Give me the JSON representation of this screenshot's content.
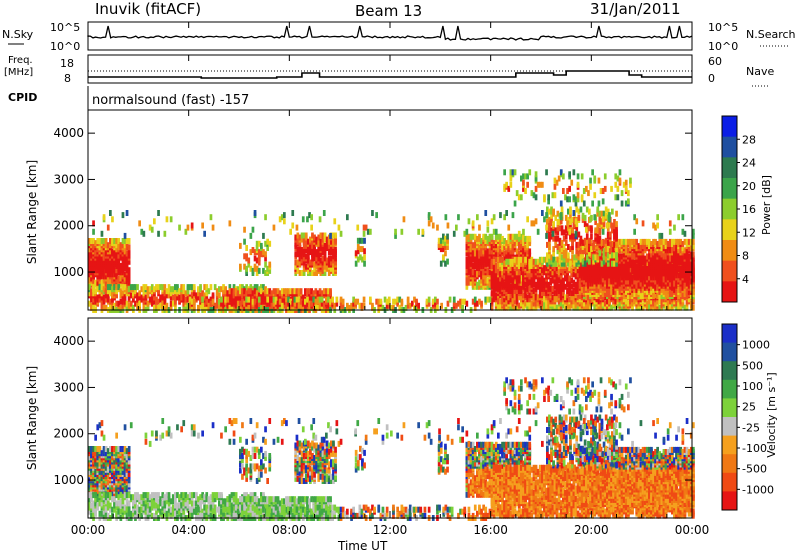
{
  "header": {
    "station": "Inuvik  (fitACF)",
    "beam": "Beam 13",
    "date": "31/Jan/2011"
  },
  "noise_panel": {
    "left_label": "N.Sky",
    "left_ticks": [
      "10^5",
      "10^0"
    ],
    "right_label": "N.Search",
    "right_ticks": [
      "10^5",
      "10^0"
    ]
  },
  "freq_panel": {
    "left_label_line1": "Freq.",
    "left_label_line2": "[MHz]",
    "left_ticks": [
      "18",
      "8"
    ],
    "right_label": "Nave",
    "right_ticks": [
      "60",
      "0"
    ]
  },
  "cpid_panel": {
    "label": "CPID",
    "text": "normalsound (fast) -157"
  },
  "x_axis": {
    "label": "Time UT",
    "ticks": [
      "00:00",
      "04:00",
      "08:00",
      "12:00",
      "16:00",
      "20:00",
      "00:00"
    ]
  },
  "chart_data": [
    {
      "type": "heatmap",
      "name": "Power",
      "ylabel": "Slant Range [km]",
      "xlabel": "Time UT",
      "x_range_hours": [
        0,
        24
      ],
      "ylim_km": [
        180,
        4500
      ],
      "y_ticks": [
        "4000",
        "3000",
        "2000",
        "1000"
      ],
      "y_tick_values": [
        4000,
        3000,
        2000,
        1000
      ],
      "colorbar": {
        "label": "Power [dB]",
        "ticks": [
          "28",
          "24",
          "20",
          "16",
          "12",
          "8",
          "4"
        ],
        "range": [
          0,
          30
        ],
        "colors": [
          "#0b1ee6",
          "#1f4fa0",
          "#2d7a4f",
          "#3ba44a",
          "#8ccd2d",
          "#e8d21a",
          "#f08c14",
          "#f0501e",
          "#e61414"
        ]
      }
    },
    {
      "type": "heatmap",
      "name": "Velocity",
      "ylabel": "Slant Range [km]",
      "xlabel": "Time UT",
      "x_range_hours": [
        0,
        24
      ],
      "ylim_km": [
        180,
        4500
      ],
      "y_ticks": [
        "4000",
        "3000",
        "2000",
        "1000"
      ],
      "y_tick_values": [
        4000,
        3000,
        2000,
        1000
      ],
      "colorbar": {
        "label": "Velocity [m s⁻¹]",
        "ticks": [
          "1000",
          "500",
          "100",
          "25",
          "-25",
          "-100",
          "-500",
          "-1000"
        ],
        "colors": [
          "#1b2fc8",
          "#2050a0",
          "#2e7a52",
          "#40a845",
          "#7dd23a",
          "#c0c0c0",
          "#f5a01e",
          "#f07814",
          "#f04a14",
          "#e61414"
        ]
      }
    }
  ]
}
